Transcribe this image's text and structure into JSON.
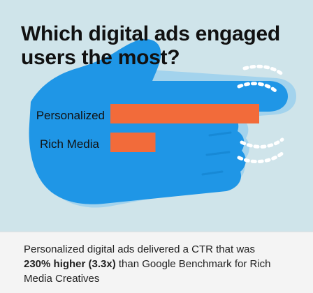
{
  "colors": {
    "background": "#cfe4ea",
    "hand": "#1f96e6",
    "hand_shadow": "#7fc4ee",
    "bar": "#f26b3a",
    "text": "#111111"
  },
  "icons": {
    "hand": "pointing-hand-icon",
    "motion": "motion-lines-icon"
  },
  "chart_data": {
    "type": "bar",
    "orientation": "horizontal",
    "title": "Which digital ads engaged users the most?",
    "categories": [
      "Personalized",
      "Rich Media"
    ],
    "values": [
      3.3,
      1
    ],
    "xlim": [
      0,
      3.3
    ],
    "axes_visible": false,
    "grid": false
  },
  "footer": {
    "text_before": "Personalized digital ads delivered a CTR that was",
    "highlight": "230% higher (3.3x)",
    "text_after": "than Google Benchmark for Rich Media Creatives"
  }
}
